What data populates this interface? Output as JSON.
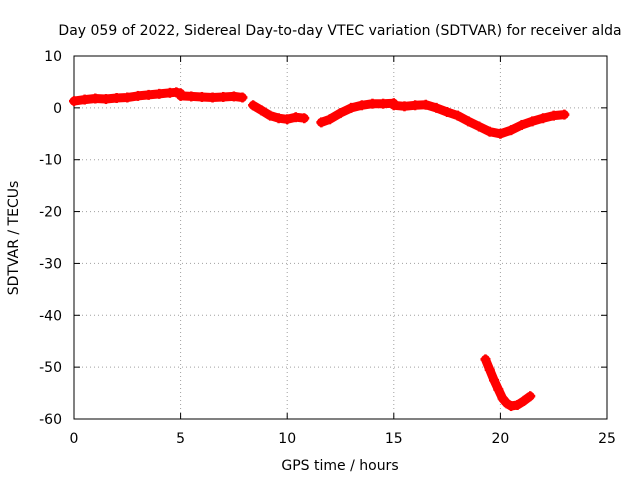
{
  "chart_data": {
    "type": "scatter",
    "title": "Day 059 of 2022, Sidereal Day-to-day VTEC variation (SDTVAR) for receiver alda",
    "xlabel": "GPS time / hours",
    "ylabel": "SDTVAR / TECUs",
    "xlim": [
      0,
      25
    ],
    "ylim": [
      -60,
      10
    ],
    "xticks": [
      0,
      5,
      10,
      15,
      20,
      25
    ],
    "yticks": [
      10,
      0,
      -10,
      -20,
      -30,
      -40,
      -50,
      -60
    ],
    "xtick_labels": [
      "0",
      "5",
      "10",
      "15",
      "20",
      "25"
    ],
    "ytick_labels": [
      "10",
      "0",
      "-10",
      "-20",
      "-30",
      "-40",
      "-50",
      "-60"
    ],
    "grid": true,
    "marker": "+",
    "color": "#ff0000",
    "series": [
      {
        "name": "segment-1",
        "x": [
          0.0,
          0.5,
          1.0,
          1.5,
          2.0,
          2.5,
          3.0,
          3.5,
          4.0,
          4.5,
          4.8,
          5.0
        ],
        "y": [
          1.3,
          1.6,
          1.8,
          1.7,
          1.9,
          2.0,
          2.3,
          2.5,
          2.7,
          2.9,
          3.0,
          2.8
        ]
      },
      {
        "name": "segment-2",
        "x": [
          5.0,
          5.5,
          6.0,
          6.5,
          7.0,
          7.5,
          7.9
        ],
        "y": [
          2.3,
          2.2,
          2.1,
          2.0,
          2.1,
          2.2,
          2.0
        ]
      },
      {
        "name": "segment-3",
        "x": [
          8.4,
          8.8,
          9.2,
          9.6,
          10.0,
          10.4,
          10.8
        ],
        "y": [
          0.5,
          -0.5,
          -1.5,
          -2.0,
          -2.2,
          -1.8,
          -2.0
        ]
      },
      {
        "name": "segment-4",
        "x": [
          11.6,
          12.0,
          12.5,
          13.0,
          13.5,
          14.0,
          14.5,
          15.0
        ],
        "y": [
          -2.8,
          -2.2,
          -1.0,
          0.0,
          0.5,
          0.8,
          0.8,
          0.9
        ]
      },
      {
        "name": "segment-5",
        "x": [
          15.0,
          15.5,
          16.0,
          16.5,
          17.0,
          17.5,
          18.0,
          18.5,
          19.0,
          19.5,
          20.0,
          20.5,
          21.0,
          21.5,
          22.0,
          22.5,
          23.0
        ],
        "y": [
          0.5,
          0.3,
          0.5,
          0.6,
          0.0,
          -0.8,
          -1.5,
          -2.6,
          -3.6,
          -4.6,
          -5.0,
          -4.3,
          -3.3,
          -2.6,
          -2.0,
          -1.5,
          -1.3
        ]
      },
      {
        "name": "segment-6",
        "x": [
          19.3,
          19.5,
          19.7,
          19.9,
          20.1,
          20.3,
          20.5,
          20.8,
          21.1,
          21.4
        ],
        "y": [
          -48.5,
          -50.5,
          -52.5,
          -54.3,
          -56.0,
          -57.0,
          -57.5,
          -57.3,
          -56.5,
          -55.6
        ]
      }
    ]
  }
}
